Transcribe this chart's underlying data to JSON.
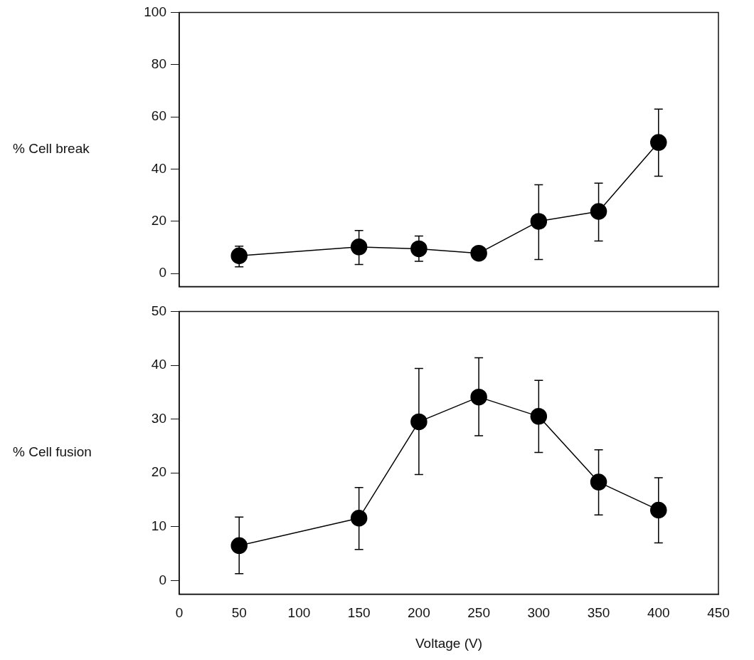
{
  "chart_data": [
    {
      "type": "line",
      "ylabel": "% Cell break",
      "x": [
        50,
        150,
        200,
        250,
        300,
        350,
        400
      ],
      "xlim": [
        0,
        450
      ],
      "xticks": [
        0,
        50,
        100,
        150,
        200,
        250,
        300,
        350,
        400,
        450
      ],
      "ylim": [
        -5,
        100
      ],
      "yticks": [
        0,
        20,
        40,
        60,
        80,
        100
      ],
      "tick_labels": "y",
      "grid": false,
      "legend": false,
      "marker": "circle",
      "line_style": "solid",
      "series": [
        {
          "color": "#000000",
          "values": [
            6.8,
            10.2,
            9.5,
            7.8,
            20,
            23.8,
            50.2
          ],
          "errors": [
            [
              2.6,
              10.5
            ],
            [
              3.5,
              16.5
            ],
            [
              4.7,
              14.4
            ],
            null,
            [
              5.4,
              34
            ],
            [
              12.5,
              34.6
            ],
            [
              37.3,
              63
            ]
          ]
        }
      ]
    },
    {
      "type": "line",
      "ylabel": "% Cell fusion",
      "xlabel": "Voltage (V)",
      "x": [
        50,
        150,
        200,
        250,
        300,
        350,
        400
      ],
      "xlim": [
        0,
        450
      ],
      "xticks": [
        0,
        50,
        100,
        150,
        200,
        250,
        300,
        350,
        400,
        450
      ],
      "ylim": [
        -2.5,
        50
      ],
      "yticks": [
        0,
        10,
        20,
        30,
        40,
        50
      ],
      "grid": false,
      "legend": false,
      "marker": "circle",
      "line_style": "solid",
      "series": [
        {
          "color": "#000000",
          "values": [
            6.5,
            11.6,
            29.5,
            34.1,
            30.5,
            18.3,
            13.1
          ],
          "errors": [
            [
              1.3,
              11.8
            ],
            [
              5.8,
              17.3
            ],
            [
              19.7,
              39.4
            ],
            [
              26.9,
              41.4
            ],
            [
              23.8,
              37.2
            ],
            [
              12.2,
              24.3
            ],
            [
              7.0,
              19.1
            ]
          ]
        }
      ]
    }
  ]
}
